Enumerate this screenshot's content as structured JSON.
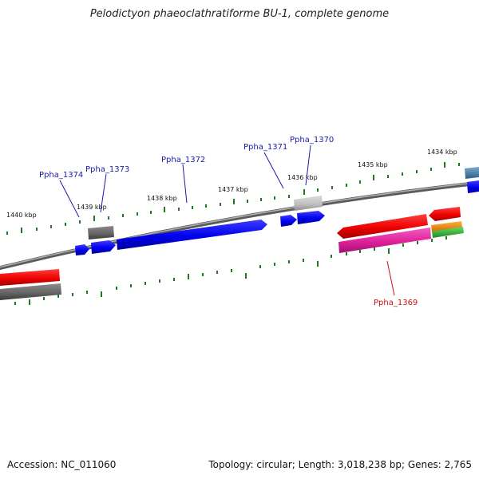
{
  "title": "Pelodictyon phaeoclathratiforme BU-1, complete genome",
  "footer": {
    "accession": "Accession: NC_011060",
    "summary": "Topology: circular; Length: 3,018,238 bp; Genes: 2,765"
  },
  "kbp_labels": [
    "1434 kbp",
    "1435 kbp",
    "1436 kbp",
    "1437 kbp",
    "1438 kbp",
    "1439 kbp",
    "1440 kbp"
  ],
  "gene_labels": [
    "Ppha_1369",
    "Ppha_1370",
    "Ppha_1371",
    "Ppha_1372",
    "Ppha_1373",
    "Ppha_1374"
  ],
  "colors": {
    "forward_cds": "#0000ee",
    "reverse_cds": "#ee0000",
    "label_forward": "#1a1aa8",
    "label_reverse": "#cc1111",
    "tick": "#1e7a1e",
    "backbone": "#808080",
    "pink_feature": "#e0209a",
    "gray_feature": "#666666",
    "light_gray_feature": "#c0c0c0",
    "orange_feature": "#f08a00",
    "green_feature": "#33bb33",
    "steel_feature": "#4a86b0"
  }
}
